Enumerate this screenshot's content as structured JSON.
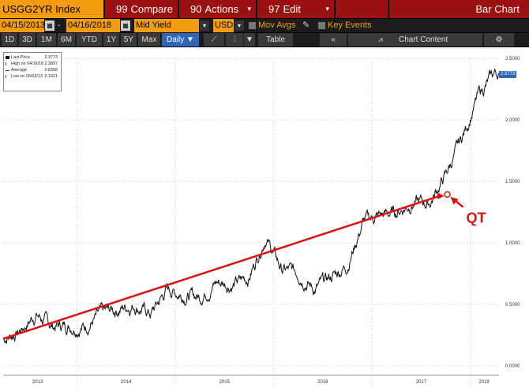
{
  "toolbar1": {
    "ticker": "USGG2YR Index",
    "compare": {
      "num": "99",
      "label": "Compare"
    },
    "actions": {
      "num": "90",
      "label": "Actions"
    },
    "edit": {
      "num": "97",
      "label": "Edit"
    },
    "title": "Bar Chart"
  },
  "toolbar2": {
    "start_date": "04/15/2013",
    "dash": "-",
    "end_date": "04/16/2018",
    "field": "Mid Yield",
    "currency": "USD",
    "mov_avgs": "Mov Avgs",
    "key_events": "Key Events"
  },
  "toolbar3": {
    "periods": [
      "1D",
      "3D",
      "1M",
      "6M",
      "YTD",
      "1Y",
      "5Y",
      "Max"
    ],
    "frequency": "Daily ▼",
    "table": "Table",
    "chart_content": "Chart Content",
    "nav_back": "«"
  },
  "legend": {
    "rows": [
      {
        "label": "Last Price",
        "value": "2.3773"
      },
      {
        "label": "High on 04/16/18",
        "value": "2.3897"
      },
      {
        "label": "Average",
        "value": "0.8368"
      },
      {
        "label": "Low on 05/03/13",
        "value": "0.1921"
      }
    ]
  },
  "annotation": {
    "label": "QT"
  },
  "last_price_badge": "2.3773",
  "chart_data": {
    "type": "line",
    "series": [
      {
        "x": [
          "2013-04",
          "2013-06",
          "2013-08",
          "2013-10",
          "2013-12",
          "2014-02",
          "2014-04",
          "2014-06",
          "2014-08",
          "2014-10",
          "2014-12",
          "2015-02",
          "2015-04",
          "2015-06",
          "2015-08",
          "2015-10",
          "2015-12",
          "2016-02",
          "2016-04",
          "2016-06",
          "2016-08",
          "2016-10",
          "2016-12",
          "2017-02",
          "2017-04",
          "2017-06",
          "2017-08",
          "2017-10",
          "2017-12",
          "2018-02",
          "2018-04"
        ],
        "values": [
          0.22,
          0.28,
          0.42,
          0.32,
          0.33,
          0.32,
          0.42,
          0.46,
          0.5,
          0.42,
          0.62,
          0.58,
          0.56,
          0.68,
          0.66,
          0.72,
          1.05,
          0.78,
          0.76,
          0.62,
          0.72,
          0.82,
          1.18,
          1.22,
          1.25,
          1.33,
          1.32,
          1.55,
          1.85,
          2.2,
          2.38
        ]
      }
    ],
    "trendline": {
      "x": [
        "2013-04",
        "2017-10"
      ],
      "values": [
        0.22,
        1.38
      ]
    },
    "y_ticks": [
      "2.5000",
      "2.0000",
      "1.5000",
      "1.0000",
      "0.5000",
      "0.0000"
    ],
    "ylim": [
      0,
      2.5
    ],
    "x_ticks": [
      "2013",
      "2014",
      "2015",
      "2016",
      "2017",
      "2018"
    ],
    "line_color": "#111111",
    "trend_color": "#e01010",
    "grid": true
  }
}
